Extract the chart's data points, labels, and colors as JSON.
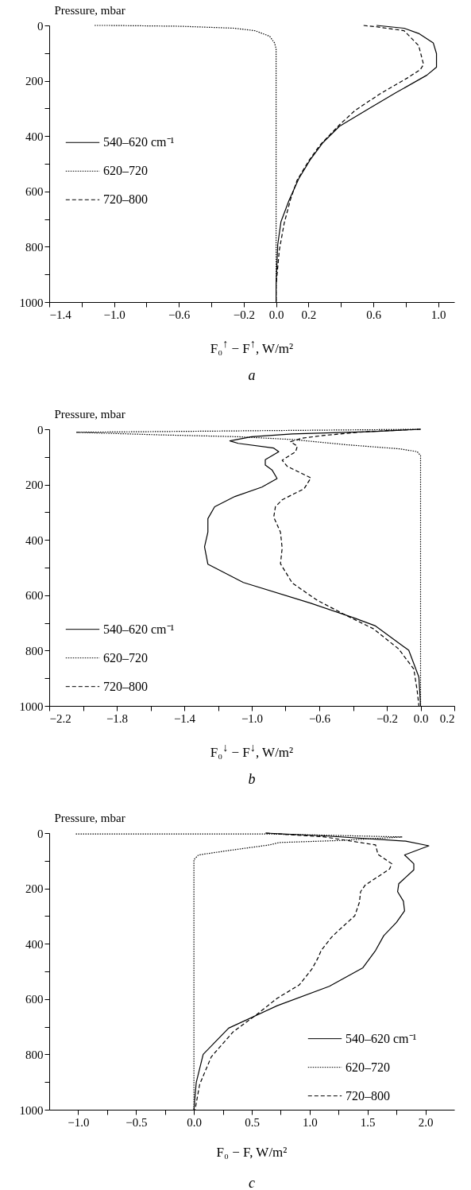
{
  "chart_data": [
    {
      "type": "line",
      "title": "a",
      "xlabel": "F₀$^{↑}$ − F$^{↑}$, W/m²",
      "ylabel": "Pressure, mbar",
      "grid": false,
      "legend": "left",
      "xlim": [
        -1.4,
        1.1
      ],
      "xticks": [
        {
          "value": -1.4,
          "label": "−1.4"
        },
        {
          "value": -1.2,
          "label": null
        },
        {
          "value": -1.0,
          "label": "−1.0"
        },
        {
          "value": -0.8,
          "label": null
        },
        {
          "value": -0.6,
          "label": "−0.6"
        },
        {
          "value": -0.4,
          "label": null
        },
        {
          "value": -0.2,
          "label": "−0.2"
        },
        {
          "value": 0,
          "label": "0.0"
        },
        0.2,
        {
          "value": 0.4,
          "label": null
        },
        0.6,
        {
          "value": 0.8,
          "label": null
        },
        {
          "value": 1,
          "label": "1.0"
        }
      ],
      "ylim": [
        1000,
        0
      ],
      "yticks": [
        0,
        {
          "value": 100,
          "label": null
        },
        200,
        {
          "value": 300,
          "label": null
        },
        400,
        {
          "value": 500,
          "label": null
        },
        600,
        {
          "value": 700,
          "label": null
        },
        800,
        {
          "value": 900,
          "label": null
        },
        1000
      ],
      "series": [
        {
          "name": "540–620 cm⁻¹",
          "color": "#000000",
          "line_style": "solid",
          "x": [
            0.62,
            0.79,
            0.88,
            0.97,
            0.99,
            0.99,
            0.93,
            0.74,
            0.57,
            0.39,
            0.29,
            0.21,
            0.14,
            0.08,
            0.03,
            0.01,
            0,
            0
          ],
          "values": [
            0,
            10,
            29,
            63,
            102,
            151,
            180,
            243,
            302,
            365,
            423,
            486,
            554,
            632,
            710,
            793,
            939,
            1000
          ]
        },
        {
          "name": "620–720",
          "color": "#000000",
          "line_style": "dotted",
          "x": [
            -1.12,
            -1.03,
            -0.59,
            -0.26,
            -0.13,
            -0.04,
            -0.01,
            0,
            0
          ],
          "values": [
            0,
            0,
            3,
            10,
            19,
            39,
            63,
            83,
            1000
          ]
        },
        {
          "name": "720–800",
          "color": "#000000",
          "line_style": "dashed",
          "x": [
            0.54,
            0.62,
            0.79,
            0.88,
            0.91,
            0.89,
            0.81,
            0.64,
            0.49,
            0.39,
            0.27,
            0.2,
            0.13,
            0.09,
            0.05,
            0.02,
            0,
            0
          ],
          "values": [
            0,
            5,
            19,
            73,
            141,
            160,
            190,
            248,
            306,
            360,
            433,
            491,
            559,
            627,
            715,
            812,
            939,
            1000
          ]
        }
      ]
    },
    {
      "type": "line",
      "title": "b",
      "xlabel": "F₀$^{↓}$ − F$^{↓}$, W/m²",
      "ylabel": "Pressure, mbar",
      "grid": false,
      "legend": "bottom left",
      "xlim": [
        -2.2,
        0.2
      ],
      "xticks": [
        {
          "value": -2.2,
          "label": "−2.2"
        },
        {
          "value": -2.0,
          "label": null
        },
        {
          "value": -1.8,
          "label": "−1.8"
        },
        {
          "value": -1.6,
          "label": null
        },
        {
          "value": -1.4,
          "label": "−1.4"
        },
        {
          "value": -1.2,
          "label": null
        },
        {
          "value": -1.0,
          "label": "−1.0"
        },
        {
          "value": -0.8,
          "label": null
        },
        {
          "value": -0.6,
          "label": "−0.6"
        },
        {
          "value": -0.4,
          "label": null
        },
        {
          "value": -0.2,
          "label": "−0.2"
        },
        {
          "value": 0,
          "label": "0.0"
        },
        0.2
      ],
      "ylim": [
        1000,
        0
      ],
      "yticks": [
        0,
        {
          "value": 100,
          "label": null
        },
        200,
        {
          "value": 300,
          "label": null
        },
        400,
        {
          "value": 500,
          "label": null
        },
        600,
        {
          "value": 700,
          "label": null
        },
        800,
        {
          "value": 900,
          "label": null
        },
        1000
      ],
      "series": [
        {
          "name": "540–620 cm⁻¹",
          "color": "#000000",
          "line_style": "solid",
          "x": [
            0,
            -0.28,
            -0.76,
            -1.0,
            -1.13,
            -1.08,
            -0.87,
            -0.84,
            -0.92,
            -0.92,
            -0.88,
            -0.85,
            -0.94,
            -1.1,
            -1.22,
            -1.26,
            -1.26,
            -1.28,
            -1.26,
            -1.05,
            -0.65,
            -0.39,
            -0.27,
            -0.07,
            -0.01,
            0
          ],
          "values": [
            0,
            8,
            17,
            27,
            42,
            51,
            68,
            81,
            110,
            129,
            147,
            178,
            209,
            243,
            280,
            323,
            372,
            425,
            488,
            554,
            629,
            683,
            710,
            799,
            896,
            1000
          ]
        },
        {
          "name": "620–720",
          "color": "#000000",
          "line_style": "dotted",
          "x": [
            0,
            -2.04,
            -1.56,
            -1.08,
            -0.76,
            -0.44,
            -0.12,
            -0.02,
            0,
            0
          ],
          "values": [
            0,
            11,
            20,
            27,
            37,
            56,
            71,
            81,
            95,
            1000
          ]
        },
        {
          "name": "720–800",
          "color": "#000000",
          "line_style": "dashed",
          "x": [
            0,
            -0.31,
            -0.57,
            -0.7,
            -0.77,
            -0.73,
            -0.74,
            -0.82,
            -0.79,
            -0.65,
            -0.69,
            -0.82,
            -0.86,
            -0.87,
            -0.83,
            -0.82,
            -0.83,
            -0.76,
            -0.61,
            -0.44,
            -0.28,
            -0.13,
            -0.04,
            -0.02,
            -0.01
          ],
          "values": [
            0,
            8,
            22,
            32,
            45,
            61,
            81,
            112,
            134,
            176,
            215,
            255,
            280,
            318,
            372,
            430,
            486,
            556,
            619,
            673,
            721,
            794,
            867,
            945,
            1000
          ]
        }
      ]
    },
    {
      "type": "line",
      "title": "c",
      "xlabel": "F₀ − F, W/m²",
      "ylabel": "Pressure, mbar",
      "grid": false,
      "legend": "bottom right",
      "xlim": [
        -1.25,
        2.25
      ],
      "xticks": [
        {
          "value": -1.0,
          "label": "−1.0"
        },
        {
          "value": -0.75,
          "label": null
        },
        {
          "value": -0.5,
          "label": "−0.5"
        },
        {
          "value": -0.25,
          "label": null
        },
        {
          "value": 0,
          "label": "0.0"
        },
        {
          "value": 0.25,
          "label": null
        },
        0.5,
        {
          "value": 0.75,
          "label": null
        },
        {
          "value": 1,
          "label": "1.0"
        },
        {
          "value": 1.25,
          "label": null
        },
        1.5,
        {
          "value": 1.75,
          "label": null
        },
        {
          "value": 2,
          "label": "2.0"
        }
      ],
      "ylim": [
        1000,
        0
      ],
      "yticks": [
        0,
        {
          "value": 100,
          "label": null
        },
        200,
        {
          "value": 300,
          "label": null
        },
        400,
        {
          "value": 500,
          "label": null
        },
        600,
        {
          "value": 700,
          "label": null
        },
        800,
        {
          "value": 900,
          "label": null
        },
        1000
      ],
      "series": [
        {
          "name": "540–620 cm⁻¹",
          "color": "#000000",
          "line_style": "solid",
          "x": [
            0.62,
            1.13,
            1.83,
            2.03,
            1.82,
            1.9,
            1.9,
            1.77,
            1.76,
            1.81,
            1.82,
            1.75,
            1.64,
            1.57,
            1.46,
            1.17,
            0.72,
            0.3,
            0.08,
            0.02,
            0
          ],
          "values": [
            0,
            10,
            29,
            46,
            79,
            111,
            133,
            183,
            212,
            246,
            281,
            323,
            371,
            424,
            487,
            554,
            624,
            705,
            800,
            902,
            1000
          ]
        },
        {
          "name": "620–720",
          "color": "#000000",
          "line_style": "dotted",
          "x": [
            -1.02,
            0.62,
            1.8,
            1.25,
            0.74,
            0.65,
            0.3,
            0.04,
            0,
            0
          ],
          "values": [
            3,
            3,
            14,
            27,
            34,
            43,
            63,
            79,
            96,
            1000
          ]
        },
        {
          "name": "720–800",
          "color": "#000000",
          "line_style": "dashed",
          "x": [
            0.62,
            1.13,
            1.57,
            1.59,
            1.71,
            1.69,
            1.48,
            1.44,
            1.43,
            1.39,
            1.25,
            1.19,
            1.1,
            1.07,
            1.02,
            0.91,
            0.72,
            0.53,
            0.34,
            0.15,
            0.05,
            0.01
          ],
          "values": [
            0,
            14,
            43,
            77,
            111,
            130,
            188,
            212,
            250,
            299,
            352,
            376,
            424,
            453,
            491,
            549,
            597,
            660,
            718,
            809,
            908,
            1000
          ]
        }
      ]
    }
  ]
}
